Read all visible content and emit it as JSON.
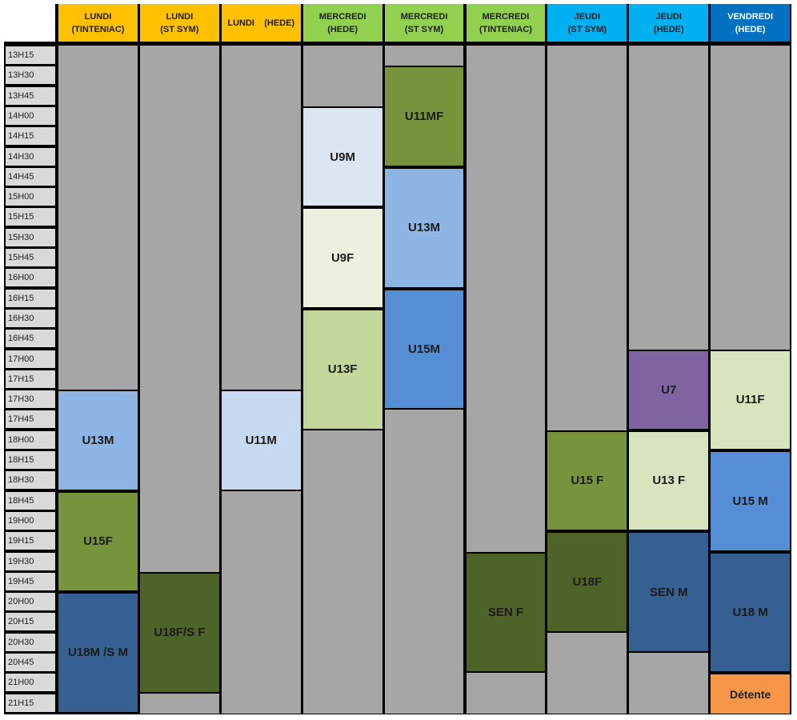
{
  "columns": [
    {
      "day": "LUNDI",
      "place": "(TINTENIAC)",
      "bg": "#ffc000",
      "fg": "#1f1f1f"
    },
    {
      "day": "LUNDI",
      "place": "(ST SYM)",
      "bg": "#ffc000",
      "fg": "#1f1f1f"
    },
    {
      "day": "LUNDI    (HEDE)",
      "place": "",
      "bg": "#ffc000",
      "fg": "#1f1f1f"
    },
    {
      "day": "MERCREDI",
      "place": "(HEDE)",
      "bg": "#92d050",
      "fg": "#1f1f1f"
    },
    {
      "day": "MERCREDI",
      "place": "(ST SYM)",
      "bg": "#92d050",
      "fg": "#1f1f1f"
    },
    {
      "day": "MERCREDI",
      "place": "(TINTENIAC)",
      "bg": "#92d050",
      "fg": "#1f1f1f"
    },
    {
      "day": "JEUDI",
      "place": "(ST SYM)",
      "bg": "#00b0f0",
      "fg": "#1f1f1f"
    },
    {
      "day": "JEUDI",
      "place": "(HEDE)",
      "bg": "#00b0f0",
      "fg": "#1f1f1f"
    },
    {
      "day": "VENDREDI",
      "place": "(HEDE)",
      "bg": "#0070c0",
      "fg": "#ffffff"
    }
  ],
  "time_slots": [
    "13H15",
    "13H30",
    "13H45",
    "14H00",
    "14H15",
    "14H30",
    "14H45",
    "15H00",
    "15H15",
    "15H30",
    "15H45",
    "16H00",
    "16H15",
    "16H30",
    "16H45",
    "17H00",
    "17H15",
    "17H30",
    "17H45",
    "18H00",
    "18H15",
    "18H30",
    "18H45",
    "19H00",
    "19H15",
    "19H30",
    "19H45",
    "20H00",
    "20H15",
    "20H30",
    "20H45",
    "21H00",
    "21H15"
  ],
  "sessions": [
    {
      "col": 0,
      "start": "17H30",
      "end": "18H45",
      "label": "U13M",
      "color": "#8eb4e3"
    },
    {
      "col": 0,
      "start": "18H45",
      "end": "20H00",
      "label": "U15F",
      "color": "#77933c"
    },
    {
      "col": 0,
      "start": "20H00",
      "end": "21H30",
      "label": "U18M /S M",
      "color": "#376092"
    },
    {
      "col": 1,
      "start": "19H45",
      "end": "21H15",
      "label": "U18F/S F",
      "color": "#4f6228"
    },
    {
      "col": 2,
      "start": "17H30",
      "end": "18H45",
      "label": "U11M",
      "color": "#c6d9f1"
    },
    {
      "col": 3,
      "start": "14H00",
      "end": "15H15",
      "label": "U9M",
      "color": "#dce6f2"
    },
    {
      "col": 3,
      "start": "15H15",
      "end": "16H30",
      "label": "U9F",
      "color": "#ebf1de"
    },
    {
      "col": 3,
      "start": "16H30",
      "end": "18H00",
      "label": "U13F",
      "color": "#c3d69b"
    },
    {
      "col": 4,
      "start": "13H30",
      "end": "14H45",
      "label": "U11MF",
      "color": "#77933c"
    },
    {
      "col": 4,
      "start": "14H45",
      "end": "16H15",
      "label": "U13M",
      "color": "#8eb4e3"
    },
    {
      "col": 4,
      "start": "16H15",
      "end": "17H45",
      "label": "U15M",
      "color": "#558ed5"
    },
    {
      "col": 5,
      "start": "19H30",
      "end": "21H00",
      "label": "SEN F",
      "color": "#4f6228"
    },
    {
      "col": 6,
      "start": "18H00",
      "end": "19H15",
      "label": "U15 F",
      "color": "#77933c"
    },
    {
      "col": 6,
      "start": "19H15",
      "end": "20H30",
      "label": "U18F",
      "color": "#4f6228"
    },
    {
      "col": 7,
      "start": "17H00",
      "end": "18H00",
      "label": "U7",
      "color": "#8064a2"
    },
    {
      "col": 7,
      "start": "18H00",
      "end": "19H15",
      "label": "U13 F",
      "color": "#d7e4bd"
    },
    {
      "col": 7,
      "start": "19H15",
      "end": "20H45",
      "label": "SEN M",
      "color": "#376092"
    },
    {
      "col": 8,
      "start": "17H00",
      "end": "18H15",
      "label": "U11F",
      "color": "#d7e4bd"
    },
    {
      "col": 8,
      "start": "18H15",
      "end": "19H30",
      "label": "U15 M",
      "color": "#558ed5"
    },
    {
      "col": 8,
      "start": "19H30",
      "end": "21H00",
      "label": "U18 M",
      "color": "#376092"
    },
    {
      "col": 8,
      "start": "21H00",
      "end": "21H30",
      "label": "Détente",
      "color": "#f79646"
    }
  ]
}
